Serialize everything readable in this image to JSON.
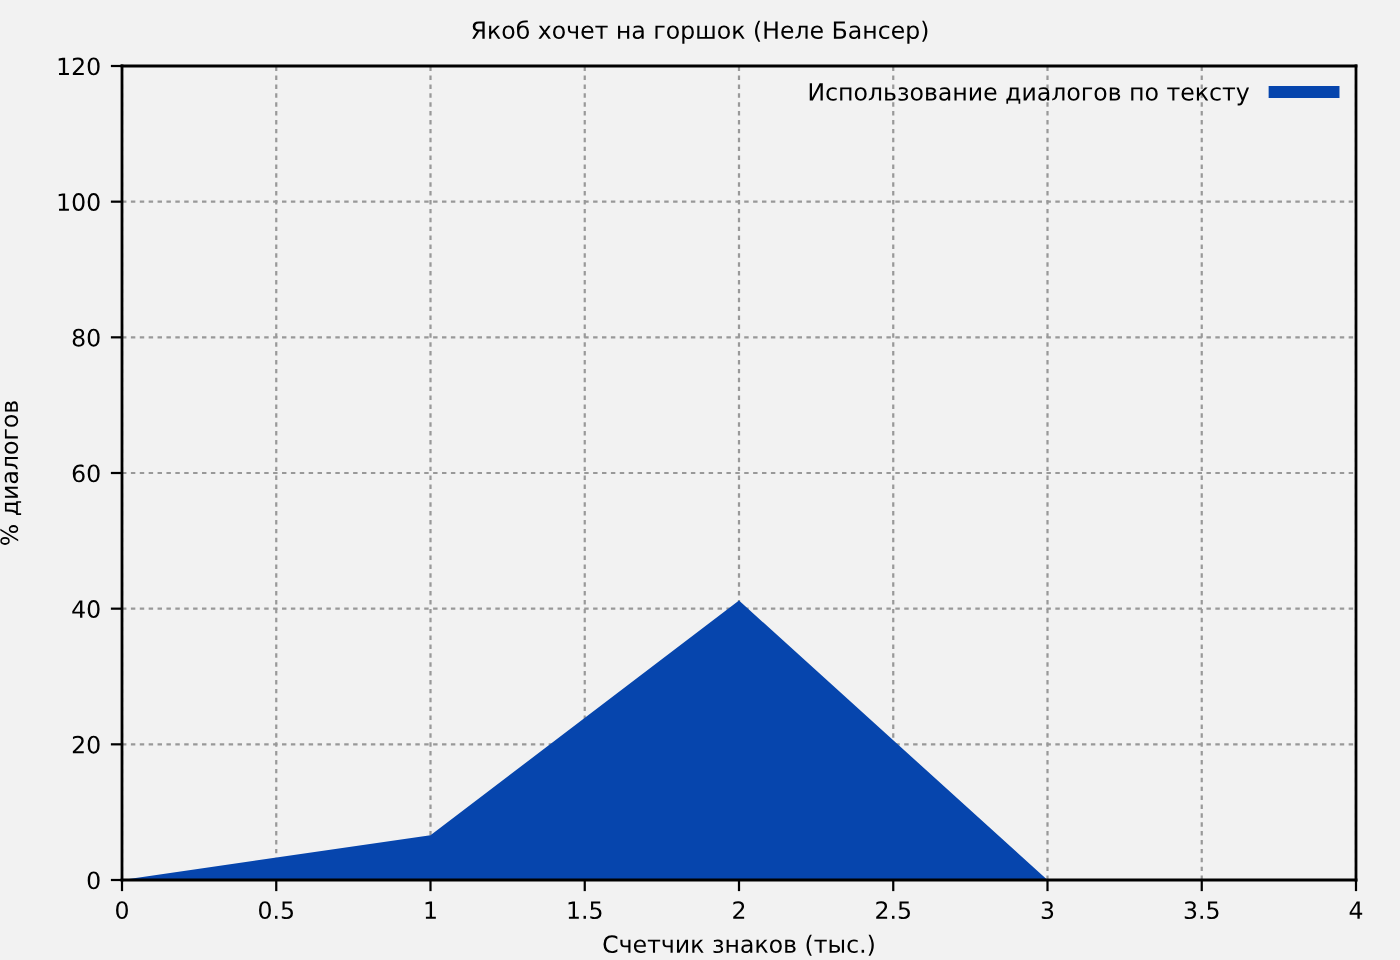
{
  "chart_data": {
    "type": "area",
    "title": "Якоб хочет на горшок (Неле Бансер)",
    "xlabel": "Счетчик знаков (тыс.)",
    "ylabel": "% диалогов",
    "x": [
      0,
      1,
      2,
      3
    ],
    "series": [
      {
        "name": "Использование диалогов по тексту",
        "color": "#0645ad",
        "values": [
          0,
          6.6,
          41.2,
          0
        ]
      }
    ],
    "xlim": [
      0,
      4
    ],
    "xticks": [
      0,
      0.5,
      1,
      1.5,
      2,
      2.5,
      3,
      3.5,
      4
    ],
    "ylim": [
      0,
      120
    ],
    "yticks": [
      0,
      20,
      40,
      60,
      80,
      100,
      120
    ],
    "grid": true,
    "legend": "top right"
  }
}
